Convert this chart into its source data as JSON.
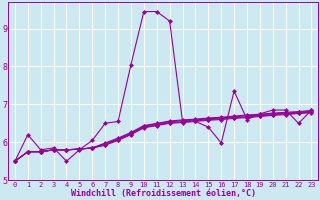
{
  "xlabel": "Windchill (Refroidissement éolien,°C)",
  "bg_color": "#cce8f0",
  "line_color": "#990099",
  "grid_color": "#ffffff",
  "xlim": [
    -0.5,
    23.5
  ],
  "ylim": [
    5.0,
    9.7
  ],
  "xticks": [
    0,
    1,
    2,
    3,
    4,
    5,
    6,
    7,
    8,
    9,
    10,
    11,
    12,
    13,
    14,
    15,
    16,
    17,
    18,
    19,
    20,
    21,
    22,
    23
  ],
  "yticks": [
    5,
    6,
    7,
    8,
    9
  ],
  "series": [
    [
      5.5,
      6.2,
      5.8,
      5.85,
      5.5,
      5.8,
      6.05,
      6.5,
      6.55,
      8.05,
      9.45,
      9.45,
      9.2,
      6.55,
      6.55,
      6.4,
      5.98,
      7.35,
      6.6,
      6.75,
      6.85,
      6.85,
      6.5,
      6.85
    ],
    [
      5.5,
      5.75,
      5.75,
      5.8,
      5.8,
      5.82,
      5.85,
      5.92,
      6.05,
      6.2,
      6.38,
      6.44,
      6.5,
      6.52,
      6.55,
      6.58,
      6.6,
      6.63,
      6.65,
      6.68,
      6.71,
      6.73,
      6.76,
      6.78
    ],
    [
      5.5,
      5.75,
      5.75,
      5.8,
      5.8,
      5.82,
      5.85,
      5.94,
      6.07,
      6.22,
      6.4,
      6.46,
      6.52,
      6.54,
      6.57,
      6.6,
      6.62,
      6.65,
      6.67,
      6.7,
      6.73,
      6.75,
      6.77,
      6.8
    ],
    [
      5.5,
      5.75,
      5.75,
      5.8,
      5.8,
      5.82,
      5.85,
      5.96,
      6.09,
      6.24,
      6.42,
      6.48,
      6.54,
      6.57,
      6.59,
      6.62,
      6.64,
      6.67,
      6.7,
      6.72,
      6.75,
      6.77,
      6.79,
      6.82
    ],
    [
      5.5,
      5.75,
      5.75,
      5.8,
      5.8,
      5.82,
      5.85,
      5.98,
      6.11,
      6.26,
      6.44,
      6.5,
      6.56,
      6.59,
      6.61,
      6.64,
      6.66,
      6.69,
      6.72,
      6.74,
      6.77,
      6.79,
      6.81,
      6.84
    ]
  ],
  "marker": "D",
  "marker_size": 2.0,
  "linewidth": 0.8,
  "tick_fontsize": 5.0,
  "xlabel_fontsize": 6.0
}
